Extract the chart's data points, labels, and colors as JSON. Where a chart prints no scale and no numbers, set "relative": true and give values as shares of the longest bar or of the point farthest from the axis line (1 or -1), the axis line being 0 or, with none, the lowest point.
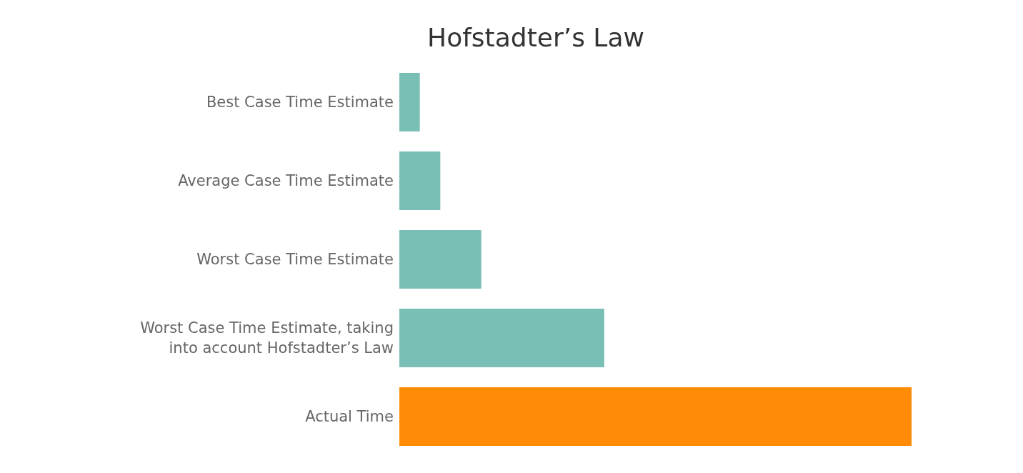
{
  "chart_data": {
    "type": "bar",
    "orientation": "horizontal",
    "relative": true,
    "title": "Hofstadter’s Law",
    "categories": [
      "Best Case Time Estimate",
      "Average Case Time Estimate",
      "Worst Case Time Estimate",
      "Worst Case Time Estimate, taking into account Hofstadter’s Law",
      "Actual Time"
    ],
    "values": [
      0.04,
      0.08,
      0.16,
      0.4,
      1
    ],
    "colors": [
      "#79bfb5",
      "#79bfb5",
      "#79bfb5",
      "#79bfb5",
      "#ff8b06"
    ]
  }
}
